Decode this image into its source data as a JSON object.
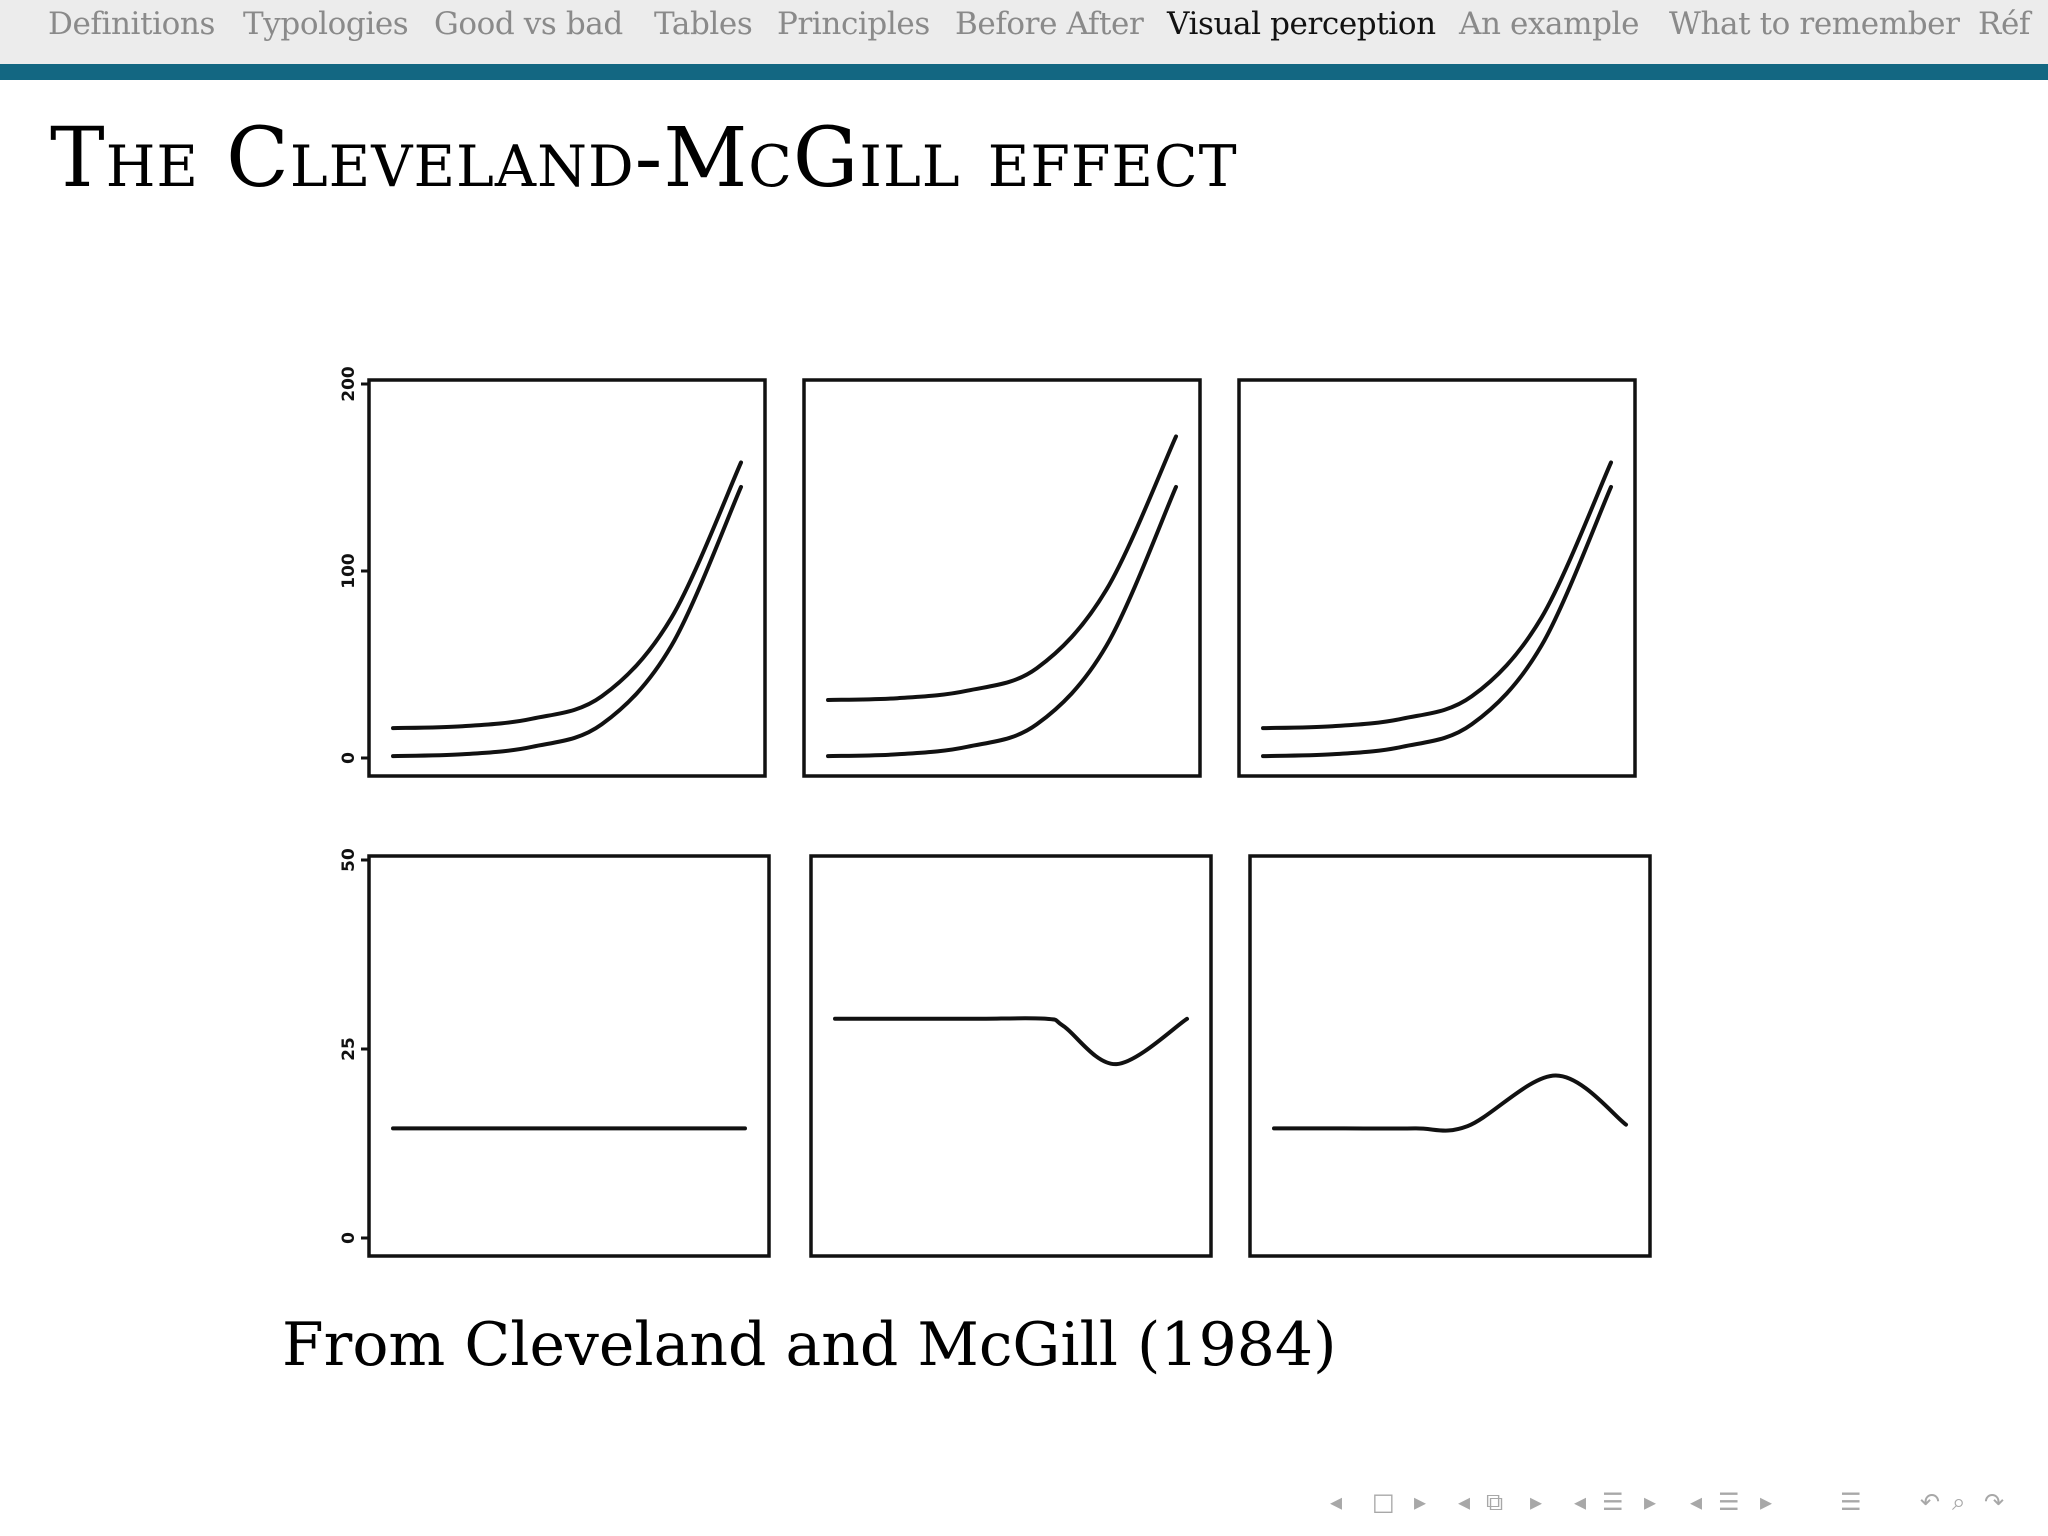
{
  "navbar": {
    "items": [
      {
        "label": "Definitions",
        "active": false
      },
      {
        "label": "Typologies",
        "active": false
      },
      {
        "label": "Good vs bad",
        "active": false
      },
      {
        "label": "Tables",
        "active": false
      },
      {
        "label": "Principles",
        "active": false
      },
      {
        "label": "Before After",
        "active": false
      },
      {
        "label": "Visual perception",
        "active": true
      },
      {
        "label": "An example",
        "active": false
      },
      {
        "label": "What to remember",
        "active": false
      },
      {
        "label": "Réf",
        "active": false
      }
    ],
    "bar_color": "#136782"
  },
  "slide": {
    "title": "The Cleveland-McGill effect",
    "caption": "From Cleveland and McGill (1984)"
  },
  "chart_data": [
    {
      "type": "line",
      "panel": "top-left",
      "yticks": [
        "0",
        "100",
        "200"
      ],
      "ylim": [
        0,
        200
      ],
      "x": [
        0,
        0.2,
        0.4,
        0.6,
        0.8,
        1.0
      ],
      "series": [
        {
          "values": [
            1,
            2,
            6,
            18,
            60,
            145
          ]
        },
        {
          "values": [
            16,
            17,
            21,
            33,
            75,
            158
          ]
        }
      ]
    },
    {
      "type": "line",
      "panel": "top-middle",
      "ylim": [
        0,
        200
      ],
      "x": [
        0,
        0.2,
        0.4,
        0.6,
        0.8,
        1.0
      ],
      "series": [
        {
          "values": [
            1,
            2,
            6,
            18,
            60,
            145
          ]
        },
        {
          "values": [
            31,
            32,
            36,
            48,
            90,
            172
          ]
        }
      ]
    },
    {
      "type": "line",
      "panel": "top-right",
      "ylim": [
        0,
        200
      ],
      "x": [
        0,
        0.2,
        0.4,
        0.6,
        0.8,
        1.0
      ],
      "series": [
        {
          "values": [
            1,
            2,
            6,
            18,
            60,
            145
          ]
        },
        {
          "values": [
            16,
            17,
            21,
            33,
            75,
            158
          ]
        }
      ]
    },
    {
      "type": "line",
      "panel": "bottom-left",
      "yticks": [
        "0",
        "25",
        "50"
      ],
      "ylim": [
        0,
        50
      ],
      "x": [
        0,
        0.2,
        0.4,
        0.6,
        0.8,
        1.0
      ],
      "series": [
        {
          "values": [
            14.5,
            14.5,
            14.5,
            14.5,
            14.5,
            14.5
          ]
        }
      ]
    },
    {
      "type": "line",
      "panel": "bottom-middle",
      "ylim": [
        0,
        50
      ],
      "x": [
        0,
        0.2,
        0.4,
        0.6,
        0.65,
        0.8,
        1.0
      ],
      "series": [
        {
          "values": [
            29,
            29,
            29,
            29,
            28,
            23,
            29
          ]
        }
      ]
    },
    {
      "type": "line",
      "panel": "bottom-right",
      "ylim": [
        0,
        50
      ],
      "x": [
        0,
        0.2,
        0.4,
        0.55,
        0.8,
        1.0
      ],
      "series": [
        {
          "values": [
            14.5,
            14.5,
            14.5,
            14.8,
            21.5,
            15
          ]
        }
      ]
    }
  ]
}
